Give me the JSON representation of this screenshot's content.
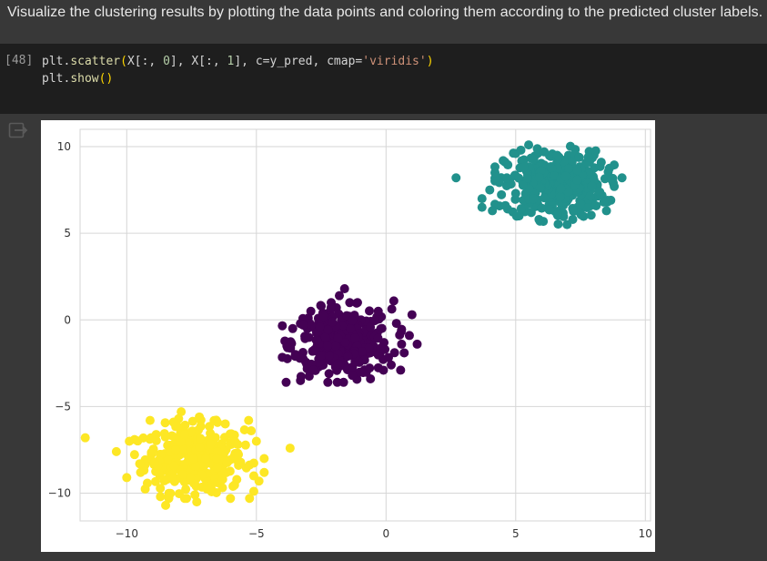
{
  "markdown": {
    "text": "Visualize the clustering results by plotting the data points and coloring them according to the predicted cluster labels."
  },
  "code_cell": {
    "execution_count": "[48]",
    "lines": [
      "plt.scatter(X[:, 0], X[:, 1], c=y_pred, cmap='viridis')",
      "plt.show()"
    ]
  },
  "output": {
    "icon": "output-redirect-icon"
  },
  "colors": {
    "cluster_0": "#440154",
    "cluster_1": "#21918c",
    "cluster_2": "#fde725",
    "grid": "#d6d6d6"
  },
  "chart_data": {
    "type": "scatter",
    "title": "",
    "xlabel": "",
    "ylabel": "",
    "xlim": [
      -11.8,
      10.2
    ],
    "ylim": [
      -11.6,
      11.0
    ],
    "xticks": [
      -10,
      -5,
      0,
      5,
      10
    ],
    "yticks": [
      -10,
      -5,
      0,
      5,
      10
    ],
    "xtick_labels": [
      "−10",
      "−5",
      "0",
      "5",
      "10"
    ],
    "ytick_labels": [
      "−10",
      "−5",
      "0",
      "5",
      "10"
    ],
    "grid": true,
    "series": [
      {
        "label": 0,
        "color": "#440154",
        "center": [
          -1.7,
          -1.3
        ],
        "points": [
          [
            -3.8,
            -1.6
          ],
          [
            -3.6,
            -0.5
          ],
          [
            -3.3,
            -3.5
          ],
          [
            -2.9,
            0.5
          ],
          [
            -2.5,
            0.8
          ],
          [
            -2.2,
            -3.1
          ],
          [
            -1.8,
            1.4
          ],
          [
            -1.6,
            1.8
          ],
          [
            -1.1,
            1.0
          ],
          [
            -0.6,
            -3.4
          ],
          [
            -0.3,
            0.5
          ],
          [
            0.2,
            -2.6
          ],
          [
            0.4,
            -0.2
          ],
          [
            0.3,
            1.1
          ],
          [
            0.6,
            -1.4
          ],
          [
            0.9,
            -0.9
          ],
          [
            1.0,
            0.3
          ],
          [
            1.2,
            -1.4
          ],
          [
            -3.5,
            -2.1
          ],
          [
            -2.8,
            -2.9
          ],
          [
            -2.4,
            0.2
          ],
          [
            -1.3,
            -3.2
          ],
          [
            -0.1,
            -2.9
          ],
          [
            0.7,
            -1.9
          ],
          [
            -3.2,
            -0.3
          ]
        ]
      },
      {
        "label": 1,
        "color": "#21918c",
        "center": [
          6.5,
          7.8
        ],
        "points": [
          [
            2.7,
            8.2
          ],
          [
            3.7,
            7.0
          ],
          [
            3.7,
            6.5
          ],
          [
            4.1,
            6.3
          ],
          [
            4.2,
            8.5
          ],
          [
            4.6,
            6.6
          ],
          [
            5.0,
            9.6
          ],
          [
            5.2,
            9.8
          ],
          [
            5.5,
            10.1
          ],
          [
            6.1,
            9.7
          ],
          [
            6.6,
            9.5
          ],
          [
            6.6,
            6.1
          ],
          [
            7.2,
            5.8
          ],
          [
            7.8,
            9.4
          ],
          [
            8.3,
            9.1
          ],
          [
            8.7,
            8.1
          ],
          [
            9.1,
            8.2
          ],
          [
            8.8,
            7.7
          ],
          [
            8.4,
            6.8
          ],
          [
            8.5,
            6.3
          ],
          [
            5.6,
            6.2
          ],
          [
            5.0,
            7.3
          ],
          [
            4.0,
            7.5
          ],
          [
            7.5,
            6.7
          ],
          [
            8.2,
            7.4
          ]
        ]
      },
      {
        "label": 2,
        "color": "#fde725",
        "center": [
          -7.4,
          -8.0
        ],
        "points": [
          [
            -11.6,
            -6.8
          ],
          [
            -10.4,
            -7.6
          ],
          [
            -9.9,
            -7.0
          ],
          [
            -10.0,
            -9.1
          ],
          [
            -9.1,
            -5.8
          ],
          [
            -8.7,
            -10.2
          ],
          [
            -8.5,
            -10.7
          ],
          [
            -7.9,
            -5.3
          ],
          [
            -7.2,
            -5.6
          ],
          [
            -7.3,
            -10.5
          ],
          [
            -6.3,
            -9.2
          ],
          [
            -6.0,
            -10.3
          ],
          [
            -5.9,
            -9.6
          ],
          [
            -5.2,
            -6.4
          ],
          [
            -5.0,
            -7.0
          ],
          [
            -5.1,
            -9.0
          ],
          [
            -4.7,
            -8.0
          ],
          [
            -4.7,
            -8.8
          ],
          [
            -4.9,
            -9.3
          ],
          [
            -5.3,
            -5.8
          ],
          [
            -3.7,
            -7.4
          ],
          [
            -9.5,
            -8.3
          ],
          [
            -6.2,
            -6.0
          ],
          [
            -8.2,
            -5.9
          ],
          [
            -6.8,
            -9.8
          ]
        ]
      }
    ]
  }
}
